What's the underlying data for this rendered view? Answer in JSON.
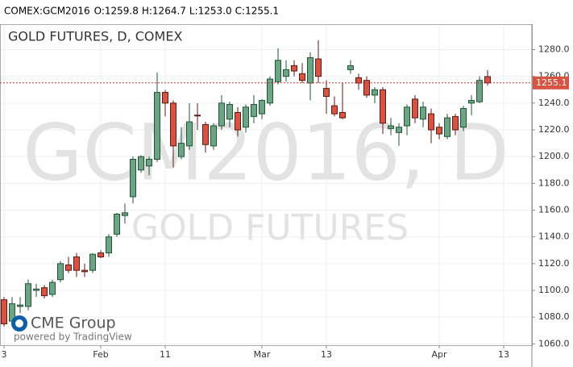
{
  "chart_data": {
    "type": "candlestick",
    "symbol": "COMEX:GCM2016",
    "ohlc_header": [
      "O:1259.8",
      "H:1264.7",
      "L:1253.0",
      "C:1255.1"
    ],
    "title": "GOLD FUTURES, D, COMEX",
    "watermark": "GCM2016, D",
    "watermark_subtitle": "GOLD FUTURES",
    "logo": "CME Group",
    "credit": "powered by TradingView",
    "categories": [
      "3",
      null,
      null,
      null,
      null,
      null,
      null,
      null,
      null,
      null,
      null,
      null,
      "Feb",
      null,
      null,
      null,
      null,
      null,
      null,
      null,
      "11",
      null,
      null,
      null,
      null,
      null,
      null,
      null,
      null,
      null,
      null,
      null,
      "Mar",
      null,
      null,
      null,
      null,
      null,
      null,
      null,
      "13",
      null,
      null,
      null,
      null,
      null,
      null,
      null,
      null,
      null,
      null,
      null,
      null,
      null,
      "Apr",
      null,
      null,
      null,
      null,
      null,
      null,
      null,
      "13",
      null,
      null,
      null
    ],
    "open": [
      1093,
      1077,
      1088,
      1088,
      1100,
      1102,
      1097,
      1108,
      1119,
      1125,
      1115,
      1115,
      1128,
      1128,
      1142,
      1156,
      1170,
      1190,
      1193,
      1198,
      1248,
      1240,
      1200,
      1208,
      1231,
      1224,
      1208,
      1223,
      1228,
      1233,
      1222,
      1230,
      1232,
      1240,
      1256,
      1260,
      1268,
      1262,
      1255,
      1273,
      1251,
      1238,
      1233,
      1265,
      1259,
      1257,
      1246,
      1250,
      1221,
      1218,
      1223,
      1243,
      1228,
      1232,
      1222,
      1215,
      1230,
      1222,
      1240,
      1241,
      1259.8,
      null,
      null,
      null,
      null,
      null
    ],
    "high": [
      1095,
      1095,
      1095,
      1108,
      1105,
      1104,
      1108,
      1122,
      1125,
      1128,
      1120,
      1128,
      1130,
      1142,
      1158,
      1165,
      1200,
      1201,
      1200,
      1263,
      1250,
      1242,
      1222,
      1240,
      1240,
      1226,
      1225,
      1246,
      1241,
      1237,
      1239,
      1246,
      1243,
      1260,
      1281,
      1272,
      1272,
      1270,
      1278,
      1287,
      1257,
      1245,
      1255,
      1272,
      1262,
      1260,
      1252,
      1252,
      1229,
      1225,
      1239,
      1246,
      1241,
      1236,
      1225,
      1232,
      1232,
      1238,
      1246,
      1260,
      1264.7,
      null,
      null,
      null,
      null,
      null
    ],
    "low": [
      1073,
      1073,
      1083,
      1085,
      1095,
      1094,
      1095,
      1106,
      1113,
      1110,
      1110,
      1113,
      1124,
      1125,
      1140,
      1150,
      1165,
      1188,
      1186,
      1196,
      1230,
      1192,
      1198,
      1205,
      1220,
      1203,
      1205,
      1220,
      1222,
      1215,
      1218,
      1225,
      1228,
      1238,
      1254,
      1256,
      1260,
      1255,
      1242,
      1255,
      1232,
      1230,
      1228,
      1262,
      1250,
      1244,
      1240,
      1217,
      1216,
      1208,
      1216,
      1225,
      1222,
      1210,
      1213,
      1213,
      1216,
      1219,
      1231,
      1240,
      1253.0,
      null,
      null,
      null,
      null,
      null
    ],
    "close": [
      1075,
      1090,
      1089,
      1105,
      1101,
      1096,
      1106,
      1120,
      1115,
      1115,
      1114,
      1127,
      1125,
      1140,
      1157,
      1158,
      1198,
      1200,
      1198,
      1248,
      1240,
      1208,
      1210,
      1226,
      1230.8,
      1209,
      1223,
      1240,
      1239,
      1220,
      1237,
      1239,
      1242,
      1258,
      1272,
      1265,
      1264,
      1257,
      1274,
      1260,
      1245,
      1232,
      1229,
      1268,
      1255,
      1246,
      1250,
      1225,
      1223,
      1222,
      1237,
      1229,
      1237,
      1220,
      1217,
      1229,
      1220,
      1236,
      1242,
      1257,
      1255.1,
      null,
      null,
      null,
      null,
      null
    ],
    "up_color": "#6ba583",
    "up_border": "#225437",
    "down_color": "#d75442",
    "down_border": "#5b1a13",
    "last_price": {
      "value": 1255.1,
      "label": "1255.1"
    },
    "ylim": [
      1059,
      1299
    ],
    "yticks": [
      {
        "value": 1060,
        "label": "1060.0"
      },
      {
        "value": 1080,
        "label": "1080.0"
      },
      {
        "value": 1100,
        "label": "1100.0"
      },
      {
        "value": 1120,
        "label": "1120.0"
      },
      {
        "value": 1140,
        "label": "1140.0"
      },
      {
        "value": 1160,
        "label": "1160.0"
      },
      {
        "value": 1180,
        "label": "1180.0"
      },
      {
        "value": 1200,
        "label": "1200.0"
      },
      {
        "value": 1220,
        "label": "1220.0"
      },
      {
        "value": 1240,
        "label": "1240.0"
      },
      {
        "value": 1260,
        "label": "1260.0"
      },
      {
        "value": 1280,
        "label": "1280.0"
      }
    ],
    "grid": true
  }
}
